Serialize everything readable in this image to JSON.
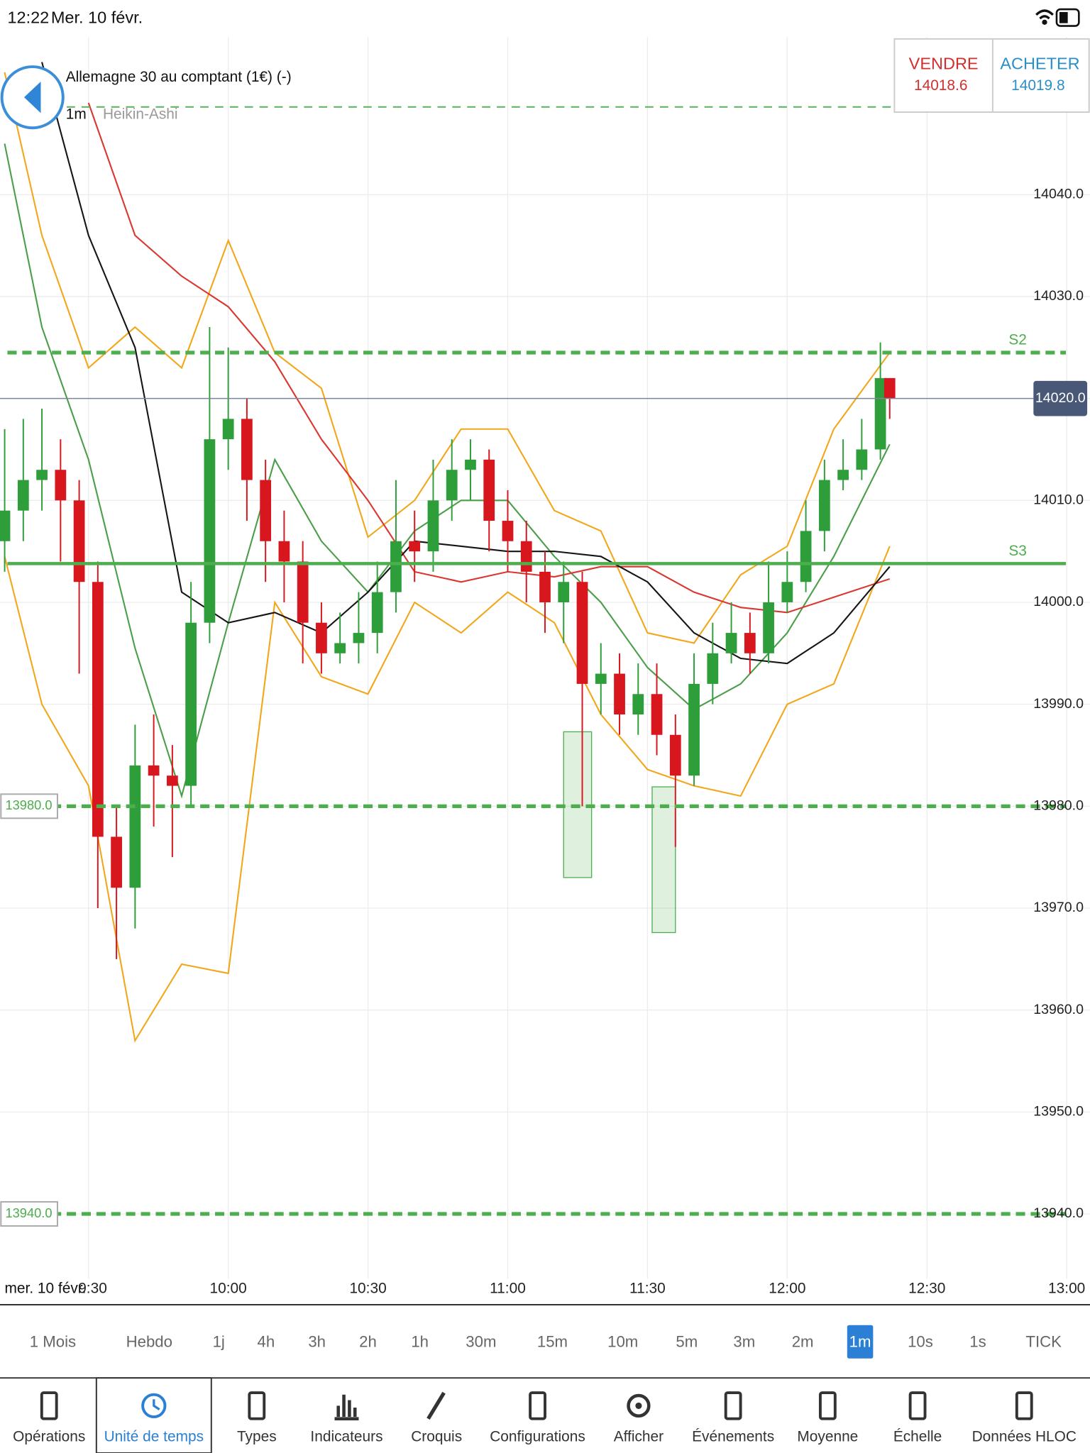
{
  "status_bar": {
    "time": "12:22",
    "date": "Mer. 10 févr."
  },
  "header": {
    "instrument": "Allemagne 30 au comptant (1€) (-)",
    "timeframe": "1m",
    "chart_style": "Heikin-Ashi"
  },
  "quote": {
    "sell_label": "VENDRE",
    "sell_price": 14018.6,
    "buy_label": "ACHETER",
    "buy_price": 14019.8
  },
  "chart_data": {
    "type": "candlestick",
    "x_date_label": "mer. 10 févr.",
    "xlim": [
      "09:11",
      "13:05"
    ],
    "xticks": [
      "09:30",
      "10:00",
      "10:30",
      "11:00",
      "11:30",
      "12:00",
      "12:30",
      "13:00"
    ],
    "ylim": [
      13935,
      14055
    ],
    "yticks": [
      {
        "value": 13940,
        "label": "13940.0"
      },
      {
        "value": 13950,
        "label": "13950.0"
      },
      {
        "value": 13960,
        "label": "13960.0"
      },
      {
        "value": 13970,
        "label": "13970.0"
      },
      {
        "value": 13980,
        "label": "13980.0"
      },
      {
        "value": 13990,
        "label": "13990.0"
      },
      {
        "value": 14000,
        "label": "14000.0"
      },
      {
        "value": 14010,
        "label": "14010.0"
      },
      {
        "value": 14020,
        "label": "14020.0"
      },
      {
        "value": 14030,
        "label": "14030.0"
      },
      {
        "value": 14040,
        "label": "14040.0"
      }
    ],
    "grid": true,
    "up_color": "#2e9e3a",
    "down_color": "#d7171d",
    "candles": {
      "x": [
        "09:12",
        "09:16",
        "09:20",
        "09:24",
        "09:28",
        "09:32",
        "09:36",
        "09:40",
        "09:44",
        "09:48",
        "09:52",
        "09:56",
        "10:00",
        "10:04",
        "10:08",
        "10:12",
        "10:16",
        "10:20",
        "10:24",
        "10:28",
        "10:32",
        "10:36",
        "10:40",
        "10:44",
        "10:48",
        "10:52",
        "10:56",
        "11:00",
        "11:04",
        "11:08",
        "11:12",
        "11:16",
        "11:20",
        "11:24",
        "11:28",
        "11:32",
        "11:36",
        "11:40",
        "11:44",
        "11:48",
        "11:52",
        "11:56",
        "12:00",
        "12:04",
        "12:08",
        "12:12",
        "12:16",
        "12:20",
        "12:22"
      ],
      "open": [
        14006,
        14009,
        14012,
        14013,
        14010,
        14002,
        13977,
        13972,
        13984,
        13983,
        13982,
        13998,
        14016,
        14018,
        14012,
        14006,
        14004,
        13998,
        13995,
        13996,
        13997,
        14001,
        14006,
        14005,
        14010,
        14013,
        14014,
        14008,
        14006,
        14003,
        14000,
        14002,
        13992,
        13993,
        13989,
        13991,
        13987,
        13983,
        13992,
        13995,
        13997,
        13995,
        14000,
        14002,
        14007,
        14012,
        14013,
        14015,
        14022
      ],
      "high": [
        14017,
        14018,
        14019,
        14016,
        14012,
        14004,
        13980,
        13988,
        13989,
        13986,
        14002,
        14027,
        14025,
        14020,
        14014,
        14009,
        14006,
        14000,
        13999,
        14001,
        14004,
        14012,
        14009,
        14014,
        14016,
        14016,
        14015,
        14011,
        14008,
        14005,
        14004,
        14003,
        13996,
        13995,
        13994,
        13994,
        13989,
        13995,
        13998,
        14000,
        13999,
        14004,
        14005,
        14010,
        14014,
        14016,
        14018,
        14025.5,
        14022
      ],
      "low": [
        14003,
        14006,
        14009,
        14004,
        13993,
        13970,
        13965,
        13968,
        13978,
        13975,
        13980,
        13996,
        14013,
        14008,
        14002,
        14000,
        13994,
        13993,
        13994,
        13994,
        13995,
        13999,
        14002,
        14003,
        14008,
        14010,
        14005,
        14003,
        14000,
        13997,
        13996,
        13980,
        13989,
        13987,
        13987,
        13985,
        13976,
        13982,
        13990,
        13994,
        13993,
        13994,
        13999,
        14001,
        14005,
        14011,
        14012,
        14014,
        14018
      ],
      "close": [
        14009,
        14012,
        14013,
        14010,
        14002,
        13977,
        13972,
        13984,
        13983,
        13982,
        13998,
        14016,
        14018,
        14012,
        14006,
        14004,
        13998,
        13995,
        13996,
        13997,
        14001,
        14006,
        14005,
        14010,
        14013,
        14014,
        14008,
        14006,
        14003,
        14000,
        14002,
        13992,
        13993,
        13989,
        13991,
        13987,
        13983,
        13992,
        13995,
        13997,
        13995,
        14000,
        14002,
        14007,
        14012,
        14013,
        14015,
        14022,
        14020
      ]
    },
    "line_x": [
      "09:12",
      "09:20",
      "09:30",
      "09:40",
      "09:50",
      "10:00",
      "10:10",
      "10:20",
      "10:30",
      "10:40",
      "10:50",
      "11:00",
      "11:10",
      "11:20",
      "11:30",
      "11:40",
      "11:50",
      "12:00",
      "12:10",
      "12:22"
    ],
    "lines": [
      {
        "color": "#f2a71b",
        "values": [
          14052,
          14036,
          14023,
          14027,
          14023,
          14035.5,
          14024.5,
          14021,
          14006.4,
          14010,
          14017,
          14017,
          14009,
          14007,
          13997,
          13996,
          14002.7,
          14005.5,
          14017,
          14024.5
        ]
      },
      {
        "color": "#f2a71b",
        "values": [
          14004.5,
          13990,
          13982,
          13957,
          13964.5,
          13963.6,
          14000,
          13992.7,
          13991,
          14000,
          13997,
          14001,
          13998,
          13989,
          13983.6,
          13982,
          13981,
          13990,
          13992,
          14005.5
        ]
      },
      {
        "color": "#4a9e4a",
        "values": [
          14045,
          14027,
          14014,
          13995.5,
          13981,
          13998,
          14014,
          14006,
          14001,
          14007,
          14010,
          14010,
          14004.5,
          14000,
          13993.6,
          13989.5,
          13992,
          13997,
          14004.5,
          14015.5
        ]
      },
      {
        "color": "#d9372f",
        "values": [
          null,
          null,
          14049,
          14036,
          14032,
          14029,
          14023.6,
          14016,
          14010,
          14003,
          14002,
          14003,
          14002.5,
          14003.5,
          14003.5,
          14001,
          13999.5,
          13999,
          14000.5,
          14002.3
        ]
      },
      {
        "color": "#151515",
        "values": [
          null,
          14053,
          14036,
          14025,
          14001,
          13998,
          13999,
          13997,
          14001,
          14006,
          14005.5,
          14005,
          14005,
          14004.5,
          14002,
          13997,
          13994.5,
          13994,
          13997,
          14003.5
        ]
      }
    ],
    "levels": [
      {
        "value": 14048.6,
        "color": "#5aaf5a",
        "style": "thin-dashed"
      },
      {
        "value": 14024.5,
        "name": "S2",
        "color": "#4cae4c",
        "style": "dashed"
      },
      {
        "value": 14003.8,
        "name": "S3",
        "color": "#4cae4c",
        "style": "solid"
      },
      {
        "value": 13980,
        "label": "13980.0",
        "color": "#4cae4c",
        "style": "dashed"
      },
      {
        "value": 13940,
        "label": "13940.0",
        "color": "#4cae4c",
        "style": "dashed"
      }
    ],
    "last_price": {
      "value": 14020,
      "label": "14020.0"
    },
    "zones": [
      {
        "x": [
          "11:12",
          "11:18"
        ],
        "y": [
          13973,
          13987.3
        ]
      },
      {
        "x": [
          "11:31",
          "11:36"
        ],
        "y": [
          13967.6,
          13981.9
        ]
      }
    ]
  },
  "timeframes": {
    "items": [
      "1 Mois",
      "Hebdo",
      "1j",
      "4h",
      "3h",
      "2h",
      "1h",
      "30m",
      "15m",
      "10m",
      "5m",
      "3m",
      "2m",
      "1m",
      "10s",
      "1s",
      "TICK"
    ],
    "selected_index": 13
  },
  "toolbar": {
    "items": [
      "Opérations",
      "Unité de temps",
      "Types",
      "Indicateurs",
      "Croquis",
      "Configurations",
      "Afficher",
      "Événements",
      "Moyenne",
      "Échelle",
      "Données HLOC"
    ],
    "selected_index": 1
  }
}
